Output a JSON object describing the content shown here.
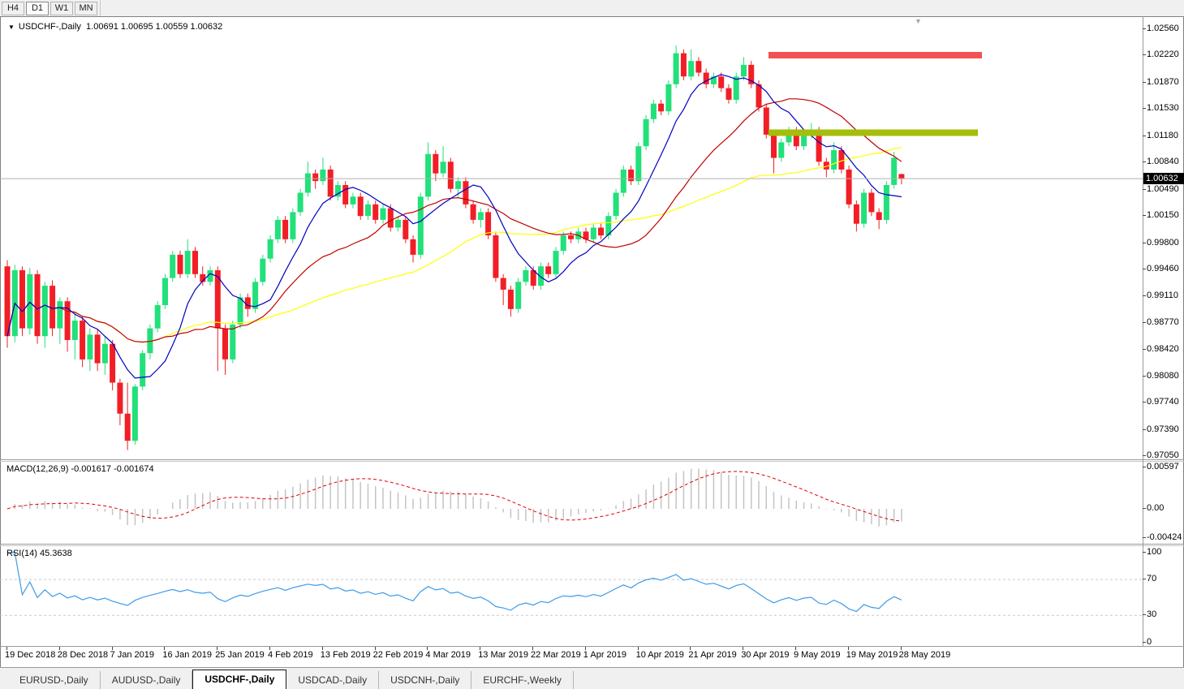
{
  "toolbar": {
    "buttons": [
      {
        "label": "H4"
      },
      {
        "label": "D1"
      },
      {
        "label": "W1"
      },
      {
        "label": "MN"
      }
    ],
    "active": "D1"
  },
  "icons": {
    "symbol_dropdown": "▼",
    "chart_shift": "▼"
  },
  "chart": {
    "title_symbol": "USDCHF-,Daily",
    "title_ohlc": "1.00691 1.00695 1.00559 1.00632",
    "current_price": "1.00632",
    "price_axis": [
      "1.02560",
      "1.02220",
      "1.01870",
      "1.01530",
      "1.01180",
      "1.00840",
      "1.00490",
      "1.00150",
      "0.99800",
      "0.99460",
      "0.99110",
      "0.98770",
      "0.98420",
      "0.98080",
      "0.97740",
      "0.97390",
      "0.97050"
    ],
    "date_axis": [
      "19 Dec 2018",
      "28 Dec 2018",
      "7 Jan 2019",
      "16 Jan 2019",
      "25 Jan 2019",
      "4 Feb 2019",
      "13 Feb 2019",
      "22 Feb 2019",
      "4 Mar 2019",
      "13 Mar 2019",
      "22 Mar 2019",
      "1 Apr 2019",
      "10 Apr 2019",
      "21 Apr 2019",
      "30 Apr 2019",
      "9 May 2019",
      "19 May 2019",
      "28 May 2019"
    ],
    "levels": {
      "resistance": {
        "price": 1.02225,
        "color": "#f25252"
      },
      "support": {
        "price": 1.01225,
        "color": "#a4be0a"
      }
    },
    "colors": {
      "candle_up": "#22e07a",
      "candle_down": "#f21e26",
      "ma_fast": "#0000c0",
      "ma_mid": "#c00000",
      "ma_slow": "#ffff00",
      "macd_histogram": "#c4c4c4",
      "macd_signal": "#e00000",
      "rsi_line": "#3d9be9",
      "current_price_line": "#b0b0b0"
    }
  },
  "macd": {
    "label": "MACD(12,26,9) -0.001617 -0.001674",
    "fast": 12,
    "slow": 26,
    "signal": 9,
    "axis": [
      "0.00597",
      "0.00",
      "-0.00424"
    ]
  },
  "rsi": {
    "label": "RSI(14) 45.3638",
    "period": 14,
    "levels": [
      70,
      30
    ],
    "axis": [
      "100",
      "70",
      "30",
      "0"
    ]
  },
  "tabs": [
    {
      "label": "EURUSD-,Daily",
      "active": false
    },
    {
      "label": "AUDUSD-,Daily",
      "active": false
    },
    {
      "label": "USDCHF-,Daily",
      "active": true
    },
    {
      "label": "USDCAD-,Daily",
      "active": false
    },
    {
      "label": "USDCNH-,Daily",
      "active": false
    },
    {
      "label": "EURCHF-,Weekly",
      "active": false
    }
  ],
  "chart_data": {
    "type": "candlestick",
    "symbol": "USDCHF",
    "timeframe": "Daily",
    "ohlc": [
      [
        0.995,
        0.9958,
        0.9845,
        0.986
      ],
      [
        0.986,
        0.9952,
        0.9852,
        0.9945
      ],
      [
        0.9945,
        0.995,
        0.986,
        0.987
      ],
      [
        0.987,
        0.9948,
        0.9862,
        0.994
      ],
      [
        0.994,
        0.9945,
        0.985,
        0.986
      ],
      [
        0.986,
        0.993,
        0.9845,
        0.9925
      ],
      [
        0.9925,
        0.9932,
        0.986,
        0.987
      ],
      [
        0.987,
        0.991,
        0.985,
        0.9905
      ],
      [
        0.9905,
        0.991,
        0.984,
        0.9855
      ],
      [
        0.9855,
        0.989,
        0.983,
        0.988
      ],
      [
        0.988,
        0.9885,
        0.982,
        0.983
      ],
      [
        0.983,
        0.987,
        0.9815,
        0.9862
      ],
      [
        0.9862,
        0.9868,
        0.9815,
        0.9825
      ],
      [
        0.9825,
        0.986,
        0.981,
        0.985
      ],
      [
        0.985,
        0.9855,
        0.979,
        0.98
      ],
      [
        0.98,
        0.9805,
        0.9745,
        0.976
      ],
      [
        0.976,
        0.98,
        0.9713,
        0.9725
      ],
      [
        0.9725,
        0.9798,
        0.972,
        0.9795
      ],
      [
        0.9795,
        0.9842,
        0.979,
        0.9838
      ],
      [
        0.9838,
        0.9875,
        0.983,
        0.987
      ],
      [
        0.987,
        0.9905,
        0.9865,
        0.99
      ],
      [
        0.99,
        0.994,
        0.9895,
        0.9935
      ],
      [
        0.9935,
        0.997,
        0.993,
        0.9965
      ],
      [
        0.9965,
        0.997,
        0.9935,
        0.994
      ],
      [
        0.994,
        0.9985,
        0.9935,
        0.997
      ],
      [
        0.997,
        0.9975,
        0.9935,
        0.994
      ],
      [
        0.994,
        0.995,
        0.9925,
        0.993
      ],
      [
        0.993,
        0.995,
        0.9925,
        0.9945
      ],
      [
        0.9945,
        0.995,
        0.9815,
        0.987
      ],
      [
        0.987,
        0.9875,
        0.981,
        0.983
      ],
      [
        0.983,
        0.988,
        0.9825,
        0.9875
      ],
      [
        0.9875,
        0.9915,
        0.987,
        0.991
      ],
      [
        0.991,
        0.9915,
        0.9885,
        0.9895
      ],
      [
        0.9895,
        0.9935,
        0.989,
        0.993
      ],
      [
        0.993,
        0.9965,
        0.9925,
        0.996
      ],
      [
        0.996,
        0.999,
        0.9955,
        0.9985
      ],
      [
        0.9985,
        1.0015,
        0.998,
        1.001
      ],
      [
        1.001,
        1.0015,
        0.998,
        0.9985
      ],
      [
        0.9985,
        1.0025,
        0.998,
        1.002
      ],
      [
        1.002,
        1.005,
        1.0015,
        1.0045
      ],
      [
        1.0045,
        1.0085,
        1.004,
        1.007
      ],
      [
        1.007,
        1.0075,
        1.005,
        1.006
      ],
      [
        1.006,
        1.009,
        1.0055,
        1.0075
      ],
      [
        1.0075,
        1.008,
        1.0035,
        1.004
      ],
      [
        1.004,
        1.006,
        1.0035,
        1.0055
      ],
      [
        1.0055,
        1.006,
        1.0025,
        1.003
      ],
      [
        1.003,
        1.0045,
        1.0025,
        1.004
      ],
      [
        1.004,
        1.0045,
        1.001,
        1.0015
      ],
      [
        1.0015,
        1.0035,
        1.001,
        1.003
      ],
      [
        1.003,
        1.0035,
        1.0005,
        1.001
      ],
      [
        1.001,
        1.003,
        1.0005,
        1.0025
      ],
      [
        1.0025,
        1.003,
        0.9995,
        1.0
      ],
      [
        1.0,
        1.0015,
        0.9995,
        1.001
      ],
      [
        1.001,
        1.0015,
        0.998,
        0.9985
      ],
      [
        0.9985,
        0.999,
        0.9955,
        0.9965
      ],
      [
        0.9965,
        1.0045,
        0.996,
        1.004
      ],
      [
        1.004,
        1.011,
        1.0035,
        1.0095
      ],
      [
        1.0095,
        1.01,
        1.006,
        1.007
      ],
      [
        1.007,
        1.0105,
        1.0065,
        1.0085
      ],
      [
        1.0085,
        1.009,
        1.0045,
        1.005
      ],
      [
        1.005,
        1.0065,
        1.004,
        1.006
      ],
      [
        1.006,
        1.0065,
        1.0025,
        1.003
      ],
      [
        1.003,
        1.0035,
        1.0005,
        1.001
      ],
      [
        1.001,
        1.0025,
        1.0,
        1.002
      ],
      [
        1.002,
        1.0025,
        0.9985,
        0.999
      ],
      [
        0.999,
        0.9995,
        0.993,
        0.9935
      ],
      [
        0.9935,
        0.994,
        0.99,
        0.992
      ],
      [
        0.992,
        0.9925,
        0.9885,
        0.9895
      ],
      [
        0.9895,
        0.9935,
        0.989,
        0.993
      ],
      [
        0.993,
        0.995,
        0.9925,
        0.9945
      ],
      [
        0.9945,
        0.995,
        0.992,
        0.9925
      ],
      [
        0.9925,
        0.9955,
        0.992,
        0.995
      ],
      [
        0.995,
        0.9955,
        0.9935,
        0.994
      ],
      [
        0.994,
        0.9975,
        0.9935,
        0.997
      ],
      [
        0.997,
        0.9995,
        0.9965,
        0.999
      ],
      [
        0.999,
        0.9995,
        0.998,
        0.9985
      ],
      [
        0.9985,
        1.0,
        0.998,
        0.9995
      ],
      [
        0.9995,
        1.0,
        0.998,
        0.9985
      ],
      [
        0.9985,
        1.0005,
        0.998,
        1.0
      ],
      [
        1.0,
        1.0005,
        0.9985,
        0.999
      ],
      [
        0.999,
        1.002,
        0.9985,
        1.0015
      ],
      [
        1.0015,
        1.005,
        1.001,
        1.0045
      ],
      [
        1.0045,
        1.008,
        1.004,
        1.0075
      ],
      [
        1.0075,
        1.008,
        1.0055,
        1.006
      ],
      [
        1.006,
        1.011,
        1.0055,
        1.0105
      ],
      [
        1.0105,
        1.0145,
        1.01,
        1.014
      ],
      [
        1.014,
        1.0165,
        1.0135,
        1.016
      ],
      [
        1.016,
        1.0165,
        1.0145,
        1.015
      ],
      [
        1.015,
        1.019,
        1.0145,
        1.0185
      ],
      [
        1.0185,
        1.0235,
        1.018,
        1.0225
      ],
      [
        1.0225,
        1.023,
        1.019,
        1.0195
      ],
      [
        1.0195,
        1.023,
        1.019,
        1.0215
      ],
      [
        1.0215,
        1.022,
        1.0195,
        1.02
      ],
      [
        1.02,
        1.0205,
        1.018,
        1.0185
      ],
      [
        1.0185,
        1.02,
        1.018,
        1.0195
      ],
      [
        1.0195,
        1.02,
        1.0175,
        1.018
      ],
      [
        1.018,
        1.0185,
        1.016,
        1.0165
      ],
      [
        1.0165,
        1.02,
        1.016,
        1.0195
      ],
      [
        1.0195,
        1.022,
        1.019,
        1.021
      ],
      [
        1.021,
        1.0215,
        1.018,
        1.0185
      ],
      [
        1.0185,
        1.019,
        1.015,
        1.0155
      ],
      [
        1.0155,
        1.016,
        1.0115,
        1.012
      ],
      [
        1.012,
        1.0125,
        1.007,
        1.009
      ],
      [
        1.009,
        1.0115,
        1.0085,
        1.011
      ],
      [
        1.011,
        1.013,
        1.0105,
        1.0125
      ],
      [
        1.0125,
        1.013,
        1.01,
        1.0105
      ],
      [
        1.0105,
        1.0125,
        1.01,
        1.012
      ],
      [
        1.012,
        1.0135,
        1.0115,
        1.0125
      ],
      [
        1.0125,
        1.013,
        1.008,
        1.0085
      ],
      [
        1.0085,
        1.009,
        1.0065,
        1.0075
      ],
      [
        1.0075,
        1.011,
        1.007,
        1.01
      ],
      [
        1.01,
        1.0105,
        1.007,
        1.0075
      ],
      [
        1.0075,
        1.008,
        1.0025,
        1.003
      ],
      [
        1.003,
        1.0035,
        0.9995,
        1.0005
      ],
      [
        1.0005,
        1.005,
        1.0,
        1.0045
      ],
      [
        1.0045,
        1.005,
        1.0015,
        1.002
      ],
      [
        1.002,
        1.0025,
        0.9998,
        1.001
      ],
      [
        1.001,
        1.006,
        1.0005,
        1.0055
      ],
      [
        1.0055,
        1.0098,
        1.005,
        1.009
      ],
      [
        1.00691,
        1.00695,
        1.00559,
        1.00632
      ]
    ]
  }
}
